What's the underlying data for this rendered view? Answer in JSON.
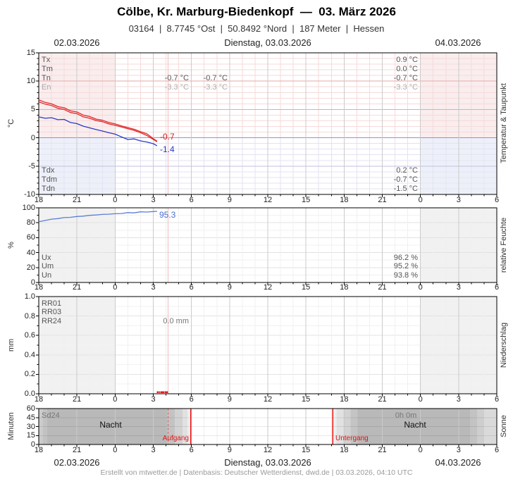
{
  "header": {
    "title": "Cölbe, Kr. Marburg-Biedenkopf  —  03. März 2026",
    "subtitle": "03164  |  8.7745 °Ost  |  50.8492 °Nord  |  187 Meter  |  Hessen"
  },
  "dates": {
    "left": "02.03.2026",
    "center": "Dienstag, 03.03.2026",
    "right": "04.03.2026"
  },
  "footer": "Erstellt von mtwetter.de | Datenbasis: Deutscher Wetterdienst, dwd.de | 03.03.2026, 04:10 UTC",
  "axis": {
    "x_tick_labels": [
      "18",
      "21",
      "0",
      "3",
      "6",
      "9",
      "12",
      "15",
      "18",
      "21",
      "0",
      "3",
      "6"
    ]
  },
  "panels": {
    "temperature": {
      "unit": "°C",
      "right_label": "Temperatur & Taupunkt",
      "y_tick_labels": [
        "15",
        "10",
        "5",
        "0",
        "-5",
        "-10"
      ],
      "stats_top": [
        {
          "label": "Tx",
          "col1": "",
          "col2": "",
          "right": "0.9 °C"
        },
        {
          "label": "Tm",
          "col1": "",
          "col2": "",
          "right": "0.0 °C"
        },
        {
          "label": "Tn",
          "col1": "-0.7 °C",
          "col2": "-0.7 °C",
          "right": "-0.7 °C"
        },
        {
          "label": "En",
          "col1": "-3.3 °C",
          "col2": "-3.3 °C",
          "right": "-3.3 °C"
        }
      ],
      "stats_bottom": [
        {
          "label": "Tdx",
          "right": "0.2 °C"
        },
        {
          "label": "Tdm",
          "right": "-0.7 °C"
        },
        {
          "label": "Tdn",
          "right": "-1.5 °C"
        }
      ],
      "current_temperature": "-0.7",
      "current_dewpoint": "-1.4"
    },
    "humidity": {
      "unit": "%",
      "right_label": "relative Feuchte",
      "y_tick_labels": [
        "100",
        "80",
        "60",
        "40",
        "20",
        "0"
      ],
      "stats": [
        {
          "label": "Ux",
          "right": "96.2 %"
        },
        {
          "label": "Um",
          "right": "95.2 %"
        },
        {
          "label": "Un",
          "right": "93.8 %"
        }
      ],
      "current_value": "95.3"
    },
    "precipitation": {
      "unit": "mm",
      "right_label": "Niederschlag",
      "y_tick_labels": [
        "1.0",
        "0.8",
        "0.6",
        "0.4",
        "0.2",
        "0.0"
      ],
      "row_labels": [
        "RR01",
        "RR03",
        "RR24"
      ],
      "annotation": "0.0 mm"
    },
    "sun": {
      "unit": "Minuten",
      "right_label": "Sonne",
      "y_tick_labels": [
        "60",
        "45",
        "30",
        "15",
        "0"
      ],
      "row_label": "Sd24",
      "night_label_1": "Nacht",
      "night_label_2": "Nacht",
      "sun_duration": "0h 0m",
      "sunrise_label": "Aufgang",
      "sunset_label": "Untergang"
    }
  },
  "chart_data": {
    "type": "line",
    "x_axis": {
      "description": "Stunden von 02.03.2026 18:00 UTC bis 04.03.2026 06:00 UTC",
      "tick_hours": [
        0,
        3,
        6,
        9,
        12,
        15,
        18,
        21,
        24,
        27,
        30,
        33,
        36
      ],
      "tick_labels": [
        "18",
        "21",
        "0",
        "3",
        "6",
        "9",
        "12",
        "15",
        "18",
        "21",
        "0",
        "3",
        "6"
      ],
      "day_boundaries_hours": [
        6,
        30
      ],
      "current_time_hours": 10.17
    },
    "temperature_panel": {
      "ylabel": "°C",
      "ylim": [
        -10,
        15
      ],
      "x_hours": [
        0,
        0.5,
        1,
        1.5,
        2,
        2.5,
        3,
        3.5,
        4,
        4.5,
        5,
        5.5,
        6,
        6.5,
        7,
        7.5,
        8,
        8.5,
        9,
        9.3
      ],
      "series": [
        {
          "name": "Temperatur (obere Linie)",
          "color": "#e02828",
          "values": [
            6.7,
            6.25,
            6.0,
            5.5,
            5.3,
            4.75,
            4.55,
            4.0,
            3.75,
            3.3,
            3.1,
            2.7,
            2.45,
            2.1,
            1.8,
            1.5,
            1.1,
            0.7,
            -0.15,
            -0.6
          ]
        },
        {
          "name": "Temperatur (untere Linie)",
          "color": "#e02828",
          "values": [
            6.35,
            5.95,
            5.7,
            5.2,
            5.0,
            4.45,
            4.25,
            3.7,
            3.45,
            3.05,
            2.85,
            2.45,
            2.2,
            1.9,
            1.6,
            1.3,
            0.9,
            0.4,
            -0.3,
            -0.7
          ]
        },
        {
          "name": "Taupunkt",
          "color": "#2b3bc8",
          "values": [
            3.7,
            3.45,
            3.55,
            3.2,
            3.25,
            2.7,
            2.5,
            2.05,
            1.75,
            1.45,
            1.2,
            0.9,
            0.65,
            0.15,
            -0.3,
            -0.2,
            -0.55,
            -0.75,
            -1.05,
            -1.4
          ]
        }
      ]
    },
    "humidity_panel": {
      "ylabel": "%",
      "ylim": [
        0,
        100
      ],
      "x_hours": [
        0,
        0.5,
        1,
        1.5,
        2,
        2.5,
        3,
        3.5,
        4,
        4.5,
        5,
        5.5,
        6,
        6.5,
        7,
        7.5,
        8,
        8.5,
        9,
        9.3
      ],
      "series": [
        {
          "name": "relative Feuchte",
          "color": "#5b7fd4",
          "values": [
            81.3,
            83.0,
            84.8,
            85.6,
            86.9,
            87.3,
            88.4,
            88.9,
            89.9,
            90.4,
            91.1,
            91.4,
            92.1,
            92.4,
            93.6,
            93.2,
            94.6,
            94.3,
            95.0,
            95.3
          ]
        }
      ]
    },
    "precipitation_panel": {
      "ylabel": "mm",
      "ylim": [
        0,
        1
      ],
      "dots_x_hours": [
        9.35,
        9.5,
        9.65,
        9.8,
        9.95,
        10.1
      ],
      "dots_value_mm": 0.0,
      "dot_color": "#e02020"
    },
    "sun_panel": {
      "ylabel": "Minuten",
      "ylim": [
        0,
        60
      ],
      "night_bands_hours": [
        [
          0,
          11.95
        ],
        [
          23.12,
          36
        ]
      ],
      "sunrise_hours": 11.95,
      "sunset_hours": 23.12,
      "line_color": "#ee1111"
    }
  }
}
